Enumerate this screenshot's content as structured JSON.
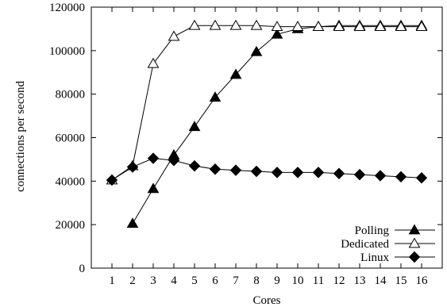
{
  "chart_data": {
    "type": "line",
    "xlabel": "Cores",
    "ylabel": "connections per second",
    "xlim": [
      0,
      17
    ],
    "ylim": [
      0,
      120000
    ],
    "x_ticks": [
      1,
      2,
      3,
      4,
      5,
      6,
      7,
      8,
      9,
      10,
      11,
      12,
      13,
      14,
      15,
      16
    ],
    "y_ticks": [
      0,
      20000,
      40000,
      60000,
      80000,
      100000,
      120000
    ],
    "grid": false,
    "legend_position": "bottom-right",
    "series": [
      {
        "name": "Polling",
        "marker": "filled-triangle",
        "color": "#000000",
        "x": [
          2,
          3,
          4,
          5,
          6,
          7,
          8,
          9,
          10,
          11,
          12,
          13,
          14,
          15,
          16
        ],
        "values": [
          20500,
          36500,
          52000,
          65000,
          78500,
          89000,
          99500,
          107500,
          110000,
          111000,
          111500,
          111500,
          111500,
          111500,
          111500
        ]
      },
      {
        "name": "Dedicated",
        "marker": "open-triangle",
        "color": "#000000",
        "x": [
          1,
          2,
          3,
          4,
          5,
          6,
          7,
          8,
          9,
          10,
          11,
          12,
          13,
          14,
          15,
          16
        ],
        "values": [
          40500,
          47000,
          94000,
          106500,
          111500,
          111500,
          111500,
          111500,
          111000,
          111000,
          111000,
          111000,
          111000,
          111000,
          111000,
          111000
        ]
      },
      {
        "name": "Linux",
        "marker": "filled-diamond",
        "color": "#000000",
        "x": [
          1,
          2,
          3,
          4,
          5,
          6,
          7,
          8,
          9,
          10,
          11,
          12,
          13,
          14,
          15,
          16
        ],
        "values": [
          40500,
          46500,
          50500,
          49500,
          47000,
          45500,
          45000,
          44500,
          44000,
          44000,
          44000,
          43500,
          43000,
          42500,
          42000,
          41500
        ]
      }
    ]
  }
}
